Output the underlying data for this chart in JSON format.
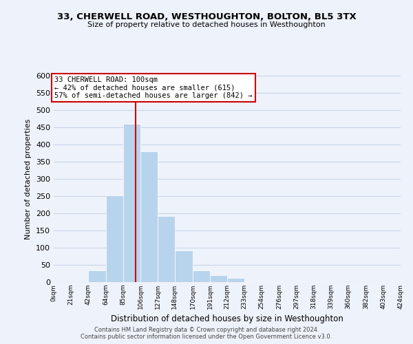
{
  "title": "33, CHERWELL ROAD, WESTHOUGHTON, BOLTON, BL5 3TX",
  "subtitle": "Size of property relative to detached houses in Westhoughton",
  "xlabel": "Distribution of detached houses by size in Westhoughton",
  "ylabel": "Number of detached properties",
  "bin_edges": [
    0,
    21,
    42,
    64,
    85,
    106,
    127,
    148,
    170,
    191,
    212,
    233,
    254,
    276,
    297,
    318,
    339,
    360,
    382,
    403,
    424
  ],
  "bin_counts": [
    0,
    0,
    35,
    252,
    460,
    381,
    192,
    93,
    35,
    20,
    12,
    2,
    2,
    0,
    2,
    2,
    0,
    0,
    0,
    3
  ],
  "bar_color": "#b8d4ec",
  "bar_edge_color": "white",
  "grid_color": "#c8d4e8",
  "background_color": "#eef2fa",
  "property_size": 100,
  "property_line_color": "#cc0000",
  "annotation_line1": "33 CHERWELL ROAD: 100sqm",
  "annotation_line2": "← 42% of detached houses are smaller (615)",
  "annotation_line3": "57% of semi-detached houses are larger (842) →",
  "annotation_box_color": "#ffffff",
  "annotation_box_edge_color": "#cc0000",
  "ylim": [
    0,
    600
  ],
  "yticks": [
    0,
    50,
    100,
    150,
    200,
    250,
    300,
    350,
    400,
    450,
    500,
    550,
    600
  ],
  "tick_labels": [
    "0sqm",
    "21sqm",
    "42sqm",
    "64sqm",
    "85sqm",
    "106sqm",
    "127sqm",
    "148sqm",
    "170sqm",
    "191sqm",
    "212sqm",
    "233sqm",
    "254sqm",
    "276sqm",
    "297sqm",
    "318sqm",
    "339sqm",
    "360sqm",
    "382sqm",
    "403sqm",
    "424sqm"
  ],
  "footer_line1": "Contains HM Land Registry data © Crown copyright and database right 2024.",
  "footer_line2": "Contains public sector information licensed under the Open Government Licence v3.0."
}
